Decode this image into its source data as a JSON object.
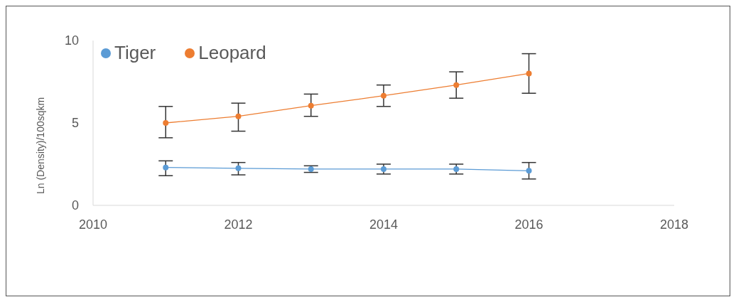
{
  "chart_data": {
    "type": "line",
    "ylabel": "Ln (Density)/100sqkm",
    "x": [
      2011,
      2012,
      2013,
      2014,
      2015,
      2016
    ],
    "series": [
      {
        "name": "Tiger",
        "color": "#5b9bd5",
        "values": [
          2.3,
          2.25,
          2.2,
          2.2,
          2.2,
          2.1
        ],
        "errors": [
          [
            1.8,
            2.7
          ],
          [
            1.85,
            2.6
          ],
          [
            2.0,
            2.4
          ],
          [
            1.9,
            2.5
          ],
          [
            1.9,
            2.5
          ],
          [
            1.6,
            2.6
          ]
        ]
      },
      {
        "name": "Leopard",
        "color": "#ed7d31",
        "values": [
          5.0,
          5.4,
          6.05,
          6.65,
          7.3,
          8.0
        ],
        "errors": [
          [
            4.1,
            6.0
          ],
          [
            4.5,
            6.2
          ],
          [
            5.4,
            6.75
          ],
          [
            6.0,
            7.3
          ],
          [
            6.5,
            8.1
          ],
          [
            6.8,
            9.2
          ]
        ]
      }
    ],
    "xlim": [
      2010,
      2018
    ],
    "xticks": [
      2010,
      2012,
      2014,
      2016,
      2018
    ],
    "ylim": [
      0,
      10
    ],
    "yticks": [
      0,
      5,
      10
    ],
    "grid": false,
    "legend": "top left",
    "marker": "circle",
    "line_style": "solid"
  }
}
